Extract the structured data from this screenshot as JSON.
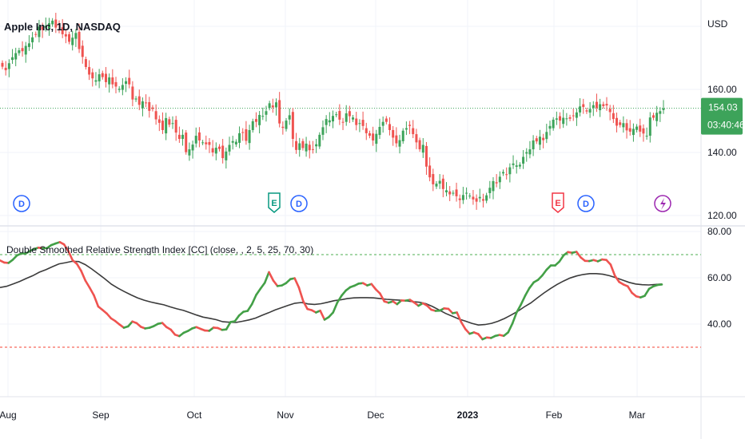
{
  "chart_data": [
    {
      "type": "candlestick",
      "title": "Apple Inc, 1D, NASDAQ",
      "currency": "USD",
      "ylim": [
        117,
        186
      ],
      "y_ticks": [
        "160.00",
        "140.00",
        "120.00"
      ],
      "last_price": "154.03",
      "countdown": "03:40:46",
      "colors": {
        "up": "#26a69a",
        "up_body": "#3da35a",
        "down": "#ef5350",
        "last_price_bg": "#3da35a"
      },
      "events": [
        {
          "letter": "D",
          "kind": "dividend",
          "color": "#2962ff"
        },
        {
          "letter": "E",
          "kind": "earnings-beat",
          "color": "#089981"
        },
        {
          "letter": "D",
          "kind": "dividend",
          "color": "#2962ff"
        },
        {
          "letter": "E",
          "kind": "earnings-miss",
          "color": "#f23645"
        },
        {
          "letter": "D",
          "kind": "dividend",
          "color": "#2962ff"
        },
        {
          "letter": "",
          "kind": "split",
          "color": "#9c27b0"
        }
      ],
      "closes": [
        167.2,
        166.1,
        168.3,
        170.2,
        171.5,
        172.4,
        172.1,
        173.8,
        174.6,
        176.5,
        177.3,
        179.9,
        178.9,
        180.2,
        181.0,
        181.8,
        179.6,
        180.4,
        177.5,
        176.8,
        175.1,
        176.4,
        177.9,
        172.8,
        170.3,
        167.1,
        164.7,
        163.5,
        162.9,
        164.8,
        163.9,
        162.3,
        163.8,
        161.6,
        160.9,
        160.2,
        161.4,
        162.6,
        161.6,
        156.8,
        157.1,
        155.1,
        156.2,
        155.6,
        153.2,
        153.8,
        150.5,
        149.4,
        147.1,
        150.9,
        148.8,
        149.3,
        146.3,
        144.3,
        145.6,
        140.1,
        141.0,
        142.5,
        145.3,
        143.8,
        143.2,
        142.6,
        142.4,
        140.0,
        141.5,
        141.1,
        138.2,
        140.3,
        142.4,
        143.6,
        143.4,
        146.1,
        146.3,
        143.7,
        147.1,
        149.9,
        149.7,
        151.9,
        151.6,
        153.1,
        155.6,
        154.3,
        155.9,
        149.2,
        147.8,
        150.1,
        151.8,
        144.3,
        140.8,
        142.9,
        141.4,
        142.8,
        140.7,
        140.9,
        142.6,
        145.6,
        148.0,
        150.6,
        150.2,
        151.6,
        152.1,
        150.4,
        149.7,
        152.4,
        151.5,
        151.1,
        148.7,
        149.3,
        148.4,
        146.1,
        145.3,
        143.8,
        145.9,
        148.1,
        149.7,
        149.7,
        147.1,
        144.7,
        142.9,
        143.9,
        146.9,
        147.7,
        148.4,
        145.8,
        143.2,
        141.0,
        142.4,
        135.5,
        132.1,
        129.9,
        130.1,
        131.0,
        128.4,
        128.0,
        126.7,
        127.2,
        126.1,
        124.9,
        126.5,
        127.2,
        126.3,
        125.1,
        124.4,
        125.9,
        124.7,
        126.4,
        128.8,
        130.9,
        130.2,
        132.3,
        133.8,
        133.1,
        135.3,
        136.5,
        135.9,
        136.1,
        138.6,
        140.1,
        141.0,
        143.8,
        143.5,
        145.0,
        143.9,
        146.5,
        148.4,
        150.4,
        150.8,
        150.1,
        151.0,
        150.8,
        150.7,
        151.7,
        152.7,
        154.6,
        154.4,
        153.0,
        153.8,
        155.0,
        154.1,
        155.3,
        154.7,
        154.9,
        152.8,
        150.6,
        148.5,
        148.7,
        149.3,
        147.0,
        146.6,
        147.5,
        148.2,
        146.6,
        146.0,
        145.3,
        151.1,
        151.0,
        152.6,
        153.1,
        154.0
      ],
      "x_tick_labels": [
        "Aug",
        "Sep",
        "Oct",
        "Nov",
        "Dec",
        "2023",
        "Feb",
        "Mar"
      ]
    },
    {
      "type": "line",
      "title": "Double Smoothed Relative Strength Index [CC] (close, , 2, 5, 25, 70, 30)",
      "ylim": [
        25,
        80
      ],
      "y_ticks": [
        "80.00",
        "60.00",
        "40.00"
      ],
      "thresholds": [
        {
          "value": 70,
          "color": "#4caf50"
        },
        {
          "value": 30,
          "color": "#f44336"
        }
      ],
      "colors": {
        "rising": "#43a047",
        "falling": "#ef5350",
        "signal": "#3b3b3b"
      },
      "series": [
        {
          "kind": "dsrsi",
          "values": [
            67.5,
            66.6,
            66.4,
            67.8,
            69.7,
            70.5,
            70.5,
            71.5,
            72.4,
            73.0,
            72.8,
            72.8,
            74.1,
            74.8,
            75.4,
            74.4,
            71.5,
            67.6,
            66.0,
            63.0,
            58.8,
            55.7,
            52.4,
            47.6,
            46.1,
            44.6,
            42.5,
            41.3,
            39.8,
            38.4,
            39.0,
            41.1,
            40.4,
            38.8,
            38.1,
            38.4,
            39.1,
            40.1,
            40.5,
            38.7,
            37.6,
            35.4,
            34.8,
            36.2,
            37.0,
            38.1,
            38.7,
            37.9,
            37.2,
            37.1,
            38.5,
            38.3,
            37.5,
            37.7,
            40.9,
            41.2,
            43.7,
            45.3,
            45.7,
            48.6,
            52.6,
            55.3,
            57.8,
            62.4,
            58.8,
            56.4,
            56.7,
            57.7,
            59.4,
            59.8,
            55.8,
            49.9,
            46.5,
            46.0,
            45.0,
            45.8,
            41.9,
            43.0,
            45.0,
            49.3,
            52.3,
            54.5,
            55.9,
            56.6,
            57.5,
            57.7,
            56.7,
            57.3,
            55.0,
            53.2,
            49.8,
            49.2,
            49.8,
            48.6,
            50.2,
            50.1,
            50.5,
            49.3,
            47.9,
            49.0,
            48.0,
            46.2,
            45.7,
            45.8,
            46.8,
            46.6,
            44.7,
            45.0,
            40.9,
            37.8,
            35.8,
            36.4,
            35.7,
            33.4,
            34.2,
            34.0,
            34.9,
            35.3,
            34.9,
            36.4,
            40.2,
            45.1,
            48.4,
            52.3,
            55.6,
            58.0,
            59.1,
            61.0,
            63.5,
            65.3,
            65.3,
            67.0,
            69.7,
            71.1,
            70.8,
            71.2,
            68.8,
            67.3,
            67.2,
            67.7,
            67.1,
            67.9,
            67.7,
            65.7,
            60.9,
            58.2,
            57.1,
            56.3,
            53.5,
            52.0,
            51.5,
            52.2,
            55.2,
            56.3,
            56.9,
            57.1
          ]
        },
        {
          "kind": "signal",
          "values": [
            55.8,
            56.3,
            57.3,
            58.4,
            59.7,
            60.9,
            62.4,
            63.5,
            64.8,
            66.0,
            66.5,
            67.1,
            67.0,
            65.7,
            63.8,
            61.7,
            59.5,
            57.2,
            55.5,
            54.0,
            52.6,
            51.3,
            50.3,
            49.5,
            48.9,
            48.3,
            47.4,
            46.6,
            45.9,
            44.9,
            43.9,
            43.0,
            42.5,
            41.9,
            41.0,
            40.8,
            40.7,
            41.2,
            41.8,
            42.6,
            43.8,
            44.9,
            46.1,
            47.1,
            48.1,
            49.0,
            49.3,
            48.7,
            48.5,
            48.8,
            49.4,
            50.1,
            50.5,
            51.0,
            51.3,
            51.4,
            51.4,
            51.3,
            51.0,
            50.7,
            50.5,
            50.3,
            50.0,
            49.7,
            49.4,
            48.8,
            47.6,
            46.1,
            44.6,
            43.4,
            42.2,
            41.3,
            40.3,
            39.6,
            39.8,
            40.3,
            41.2,
            42.4,
            43.9,
            45.5,
            47.4,
            49.1,
            51.3,
            53.4,
            55.3,
            57.1,
            58.6,
            59.9,
            60.8,
            61.4,
            61.8,
            61.8,
            61.5,
            60.9,
            60.0,
            59.0,
            58.0,
            57.3,
            57.0,
            56.9,
            57.1,
            57.3
          ]
        }
      ]
    }
  ],
  "crosshair_price_label": "160.00"
}
